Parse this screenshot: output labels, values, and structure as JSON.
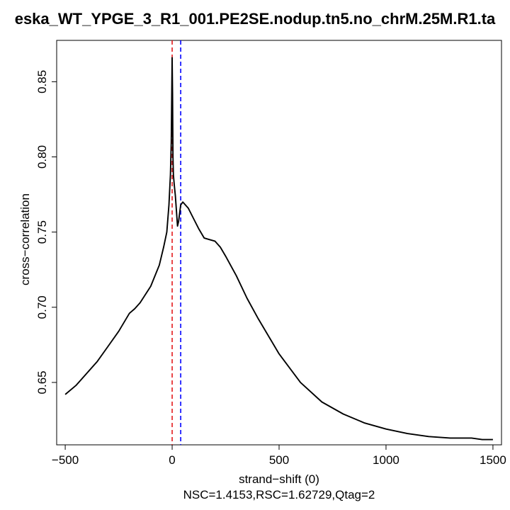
{
  "chart_data": {
    "type": "line",
    "title": "eska_WT_YPGE_3_R1_001.PE2SE.nodup.tn5.no_chrM.25M.R1.ta",
    "xlabel": "strand−shift (0)",
    "ylabel": "cross−correlation",
    "subtitle": "NSC=1.4153,RSC=1.62729,Qtag=2",
    "xlim": [
      -540,
      1540
    ],
    "ylim": [
      0.6085,
      0.8775
    ],
    "x_ticks": [
      -500,
      0,
      500,
      1000,
      1500
    ],
    "x_tick_labels": [
      "−500",
      "0",
      "500",
      "1000",
      "1500"
    ],
    "y_ticks": [
      0.65,
      0.7,
      0.75,
      0.8,
      0.85
    ],
    "y_tick_labels": [
      "0.65",
      "0.70",
      "0.75",
      "0.80",
      "0.85"
    ],
    "grid": false,
    "series": [
      {
        "color": "#000000",
        "x": [
          -500,
          -450,
          -400,
          -350,
          -300,
          -250,
          -200,
          -175,
          -150,
          -100,
          -60,
          -40,
          -25,
          -15,
          -8,
          -4,
          0,
          2,
          4,
          6,
          10,
          15,
          20,
          25,
          30,
          40,
          50,
          75,
          100,
          125,
          150,
          175,
          200,
          225,
          250,
          300,
          350,
          400,
          500,
          600,
          700,
          800,
          900,
          1000,
          1100,
          1200,
          1300,
          1400,
          1450,
          1500
        ],
        "y": [
          0.642,
          0.648,
          0.656,
          0.664,
          0.674,
          0.684,
          0.696,
          0.699,
          0.703,
          0.714,
          0.728,
          0.74,
          0.75,
          0.768,
          0.788,
          0.81,
          0.866,
          0.842,
          0.8,
          0.788,
          0.781,
          0.774,
          0.764,
          0.754,
          0.757,
          0.768,
          0.77,
          0.766,
          0.759,
          0.752,
          0.746,
          0.745,
          0.744,
          0.74,
          0.734,
          0.721,
          0.706,
          0.693,
          0.669,
          0.65,
          0.637,
          0.629,
          0.623,
          0.619,
          0.616,
          0.614,
          0.613,
          0.613,
          0.612,
          0.612
        ]
      }
    ],
    "vlines": [
      {
        "x": 0,
        "color": "#e41a1c",
        "style": "dashed"
      },
      {
        "x": 40,
        "color": "#0000ff",
        "style": "dashed"
      }
    ]
  }
}
